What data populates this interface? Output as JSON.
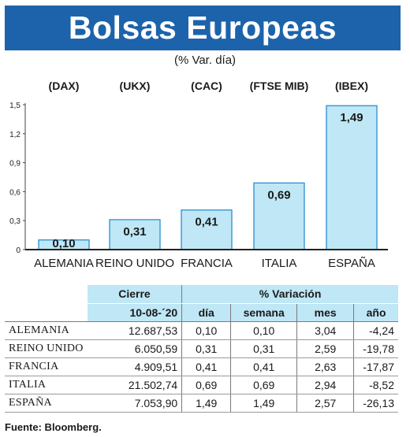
{
  "header": {
    "title": "Bolsas Europeas",
    "subtitle": "(% Var. día)"
  },
  "chart_data": {
    "type": "bar",
    "index_labels": [
      "(DAX)",
      "(UKX)",
      "(CAC)",
      "(FTSE MIB)",
      "(IBEX)"
    ],
    "categories": [
      "ALEMANIA",
      "REINO UNIDO",
      "FRANCIA",
      "ITALIA",
      "ESPAÑA"
    ],
    "values": [
      0.1,
      0.31,
      0.41,
      0.69,
      1.49
    ],
    "value_labels": [
      "0,10",
      "0,31",
      "0,41",
      "0,69",
      "1,49"
    ],
    "y_ticks": [
      "0",
      "0,3",
      "0,6",
      "0,9",
      "1,2",
      "1,5"
    ],
    "y_tick_values": [
      0,
      0.3,
      0.6,
      0.9,
      1.2,
      1.5
    ],
    "ylim": [
      0,
      1.5
    ],
    "grid": false,
    "bar_color": "#bfe7f6",
    "bar_border": "#2b8ed0"
  },
  "table": {
    "header_cierre": "Cierre",
    "header_variacion": "% Variación",
    "date_label": "10-08-´20",
    "col_dia": "día",
    "col_semana": "semana",
    "col_mes": "mes",
    "col_ano": "año",
    "rows": [
      {
        "country": "ALEMANIA",
        "cierre": "12.687,53",
        "dia": "0,10",
        "semana": "0,10",
        "mes": "3,04",
        "ano": "-4,24"
      },
      {
        "country": "REINO UNIDO",
        "cierre": "6.050,59",
        "dia": "0,31",
        "semana": "0,31",
        "mes": "2,59",
        "ano": "-19,78"
      },
      {
        "country": "FRANCIA",
        "cierre": "4.909,51",
        "dia": "0,41",
        "semana": "0,41",
        "mes": "2,63",
        "ano": "-17,87"
      },
      {
        "country": "ITALIA",
        "cierre": "21.502,74",
        "dia": "0,69",
        "semana": "0,69",
        "mes": "2,94",
        "ano": "-8,52"
      },
      {
        "country": "ESPAÑA",
        "cierre": "7.053,90",
        "dia": "1,49",
        "semana": "1,49",
        "mes": "2,57",
        "ano": "-26,13"
      }
    ]
  },
  "source": "Fuente: Bloomberg.",
  "colors": {
    "header_bg": "#1d63ab",
    "table_header_bg": "#bfe7f6"
  }
}
